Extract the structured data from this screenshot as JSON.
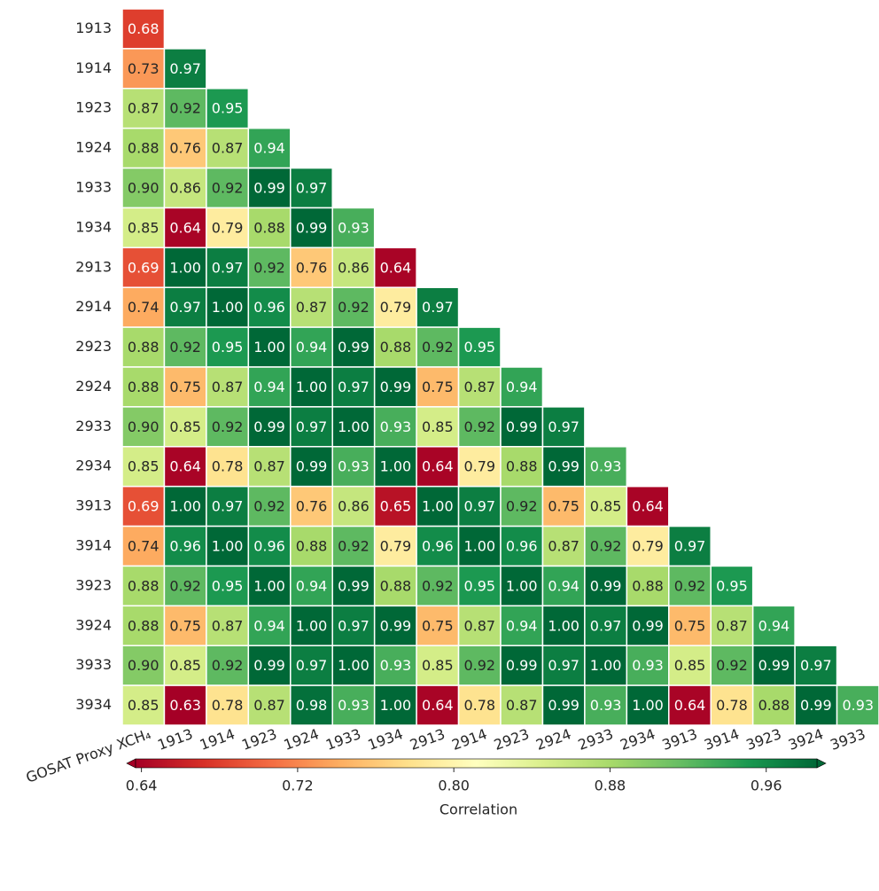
{
  "chart_data": {
    "type": "heatmap",
    "colormap": "RdYlGn",
    "rows": [
      "1913",
      "1914",
      "1923",
      "1924",
      "1933",
      "1934",
      "2913",
      "2914",
      "2923",
      "2924",
      "2933",
      "2934",
      "3913",
      "3914",
      "3923",
      "3924",
      "3933",
      "3934"
    ],
    "columns": [
      "GOSAT Proxy XCH₄",
      "1913",
      "1914",
      "1923",
      "1924",
      "1933",
      "1934",
      "2913",
      "2914",
      "2923",
      "2924",
      "2933",
      "2934",
      "3913",
      "3914",
      "3923",
      "3924",
      "3933"
    ],
    "values": [
      [
        0.68
      ],
      [
        0.73,
        0.97
      ],
      [
        0.87,
        0.92,
        0.95
      ],
      [
        0.88,
        0.76,
        0.87,
        0.94
      ],
      [
        0.9,
        0.86,
        0.92,
        0.99,
        0.97
      ],
      [
        0.85,
        0.64,
        0.79,
        0.88,
        0.99,
        0.93
      ],
      [
        0.69,
        1.0,
        0.97,
        0.92,
        0.76,
        0.86,
        0.64
      ],
      [
        0.74,
        0.97,
        1.0,
        0.96,
        0.87,
        0.92,
        0.79,
        0.97
      ],
      [
        0.88,
        0.92,
        0.95,
        1.0,
        0.94,
        0.99,
        0.88,
        0.92,
        0.95
      ],
      [
        0.88,
        0.75,
        0.87,
        0.94,
        1.0,
        0.97,
        0.99,
        0.75,
        0.87,
        0.94
      ],
      [
        0.9,
        0.85,
        0.92,
        0.99,
        0.97,
        1.0,
        0.93,
        0.85,
        0.92,
        0.99,
        0.97
      ],
      [
        0.85,
        0.64,
        0.78,
        0.87,
        0.99,
        0.93,
        1.0,
        0.64,
        0.79,
        0.88,
        0.99,
        0.93
      ],
      [
        0.69,
        1.0,
        0.97,
        0.92,
        0.76,
        0.86,
        0.65,
        1.0,
        0.97,
        0.92,
        0.75,
        0.85,
        0.64
      ],
      [
        0.74,
        0.96,
        1.0,
        0.96,
        0.88,
        0.92,
        0.79,
        0.96,
        1.0,
        0.96,
        0.87,
        0.92,
        0.79,
        0.97
      ],
      [
        0.88,
        0.92,
        0.95,
        1.0,
        0.94,
        0.99,
        0.88,
        0.92,
        0.95,
        1.0,
        0.94,
        0.99,
        0.88,
        0.92,
        0.95
      ],
      [
        0.88,
        0.75,
        0.87,
        0.94,
        1.0,
        0.97,
        0.99,
        0.75,
        0.87,
        0.94,
        1.0,
        0.97,
        0.99,
        0.75,
        0.87,
        0.94
      ],
      [
        0.9,
        0.85,
        0.92,
        0.99,
        0.97,
        1.0,
        0.93,
        0.85,
        0.92,
        0.99,
        0.97,
        1.0,
        0.93,
        0.85,
        0.92,
        0.99,
        0.97
      ],
      [
        0.85,
        0.63,
        0.78,
        0.87,
        0.98,
        0.93,
        1.0,
        0.64,
        0.78,
        0.87,
        0.99,
        0.93,
        1.0,
        0.64,
        0.78,
        0.88,
        0.99,
        0.93
      ]
    ],
    "value_labels": [
      [
        "0.68"
      ],
      [
        "0.73",
        "0.97"
      ],
      [
        "0.87",
        "0.92",
        "0.95"
      ],
      [
        "0.88",
        "0.76",
        "0.87",
        "0.94"
      ],
      [
        "0.90",
        "0.86",
        "0.92",
        "0.99",
        "0.97"
      ],
      [
        "0.85",
        "0.64",
        "0.79",
        "0.88",
        "0.99",
        "0.93"
      ],
      [
        "0.69",
        "1.00",
        "0.97",
        "0.92",
        "0.76",
        "0.86",
        "0.64"
      ],
      [
        "0.74",
        "0.97",
        "1.00",
        "0.96",
        "0.87",
        "0.92",
        "0.79",
        "0.97"
      ],
      [
        "0.88",
        "0.92",
        "0.95",
        "1.00",
        "0.94",
        "0.99",
        "0.88",
        "0.92",
        "0.95"
      ],
      [
        "0.88",
        "0.75",
        "0.87",
        "0.94",
        "1.00",
        "0.97",
        "0.99",
        "0.75",
        "0.87",
        "0.94"
      ],
      [
        "0.90",
        "0.85",
        "0.92",
        "0.99",
        "0.97",
        "1.00",
        "0.93",
        "0.85",
        "0.92",
        "0.99",
        "0.97"
      ],
      [
        "0.85",
        "0.64",
        "0.78",
        "0.87",
        "0.99",
        "0.93",
        "1.00",
        "0.64",
        "0.79",
        "0.88",
        "0.99",
        "0.93"
      ],
      [
        "0.69",
        "1.00",
        "0.97",
        "0.92",
        "0.76",
        "0.86",
        "0.65",
        "1.00",
        "0.97",
        "0.92",
        "0.75",
        "0.85",
        "0.64"
      ],
      [
        "0.74",
        "0.96",
        "1.00",
        "0.96",
        "0.88",
        "0.92",
        "0.79",
        "0.96",
        "1.00",
        "0.96",
        "0.87",
        "0.92",
        "0.79",
        "0.97"
      ],
      [
        "0.88",
        "0.92",
        "0.95",
        "1.00",
        "0.94",
        "0.99",
        "0.88",
        "0.92",
        "0.95",
        "1.00",
        "0.94",
        "0.99",
        "0.88",
        "0.92",
        "0.95"
      ],
      [
        "0.88",
        "0.75",
        "0.87",
        "0.94",
        "1.00",
        "0.97",
        "0.99",
        "0.75",
        "0.87",
        "0.94",
        "1.00",
        "0.97",
        "0.99",
        "0.75",
        "0.87",
        "0.94"
      ],
      [
        "0.90",
        "0.85",
        "0.92",
        "0.99",
        "0.97",
        "1.00",
        "0.93",
        "0.85",
        "0.92",
        "0.99",
        "0.97",
        "1.00",
        "0.93",
        "0.85",
        "0.92",
        "0.99",
        "0.97"
      ],
      [
        "0.85",
        "0.63",
        "0.78",
        "0.87",
        "0.98",
        "0.93",
        "1.00",
        "0.64",
        "0.78",
        "0.87",
        "0.99",
        "0.93",
        "1.00",
        "0.64",
        "0.78",
        "0.88",
        "0.99",
        "0.93"
      ]
    ],
    "colorbar": {
      "label": "Correlation",
      "clim": [
        0.637,
        0.986
      ],
      "ticks": [
        0.64,
        0.72,
        {
          "value": 0.8,
          "label": "0.80"
        },
        0.88,
        0.96
      ]
    }
  }
}
